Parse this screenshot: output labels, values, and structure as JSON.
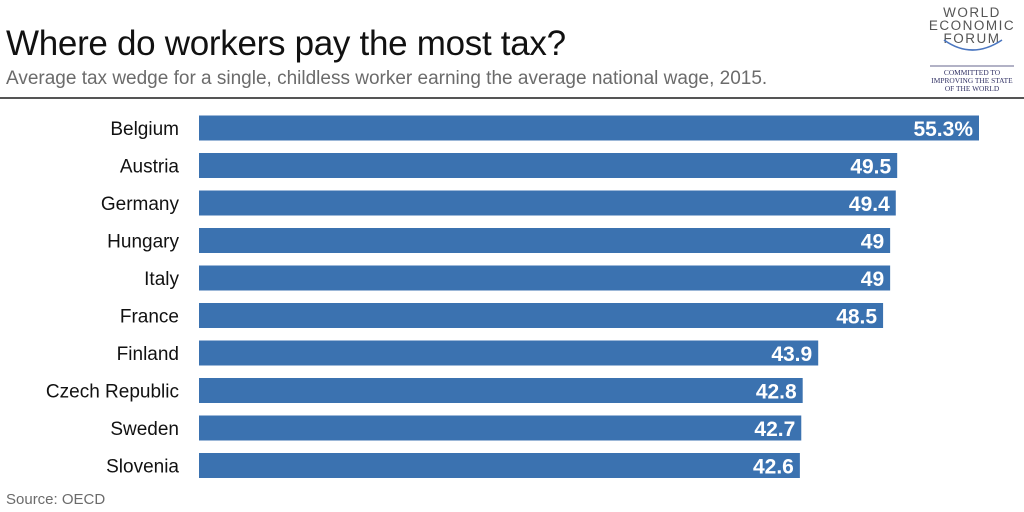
{
  "title": "Where do workers pay the most tax?",
  "subtitle": "Average tax wedge for a single, childless worker earning the average national wage, 2015.",
  "source": "Source: OECD",
  "logo": {
    "lines": [
      "WORLD",
      "ECONOMIC",
      "FORUM"
    ],
    "tagline": [
      "COMMITTED TO",
      "IMPROVING THE STATE",
      "OF THE WORLD"
    ]
  },
  "colors": {
    "bar": "#3b72b0",
    "bar_label": "#ffffff",
    "category_label": "#111111"
  },
  "chart_data": {
    "type": "bar",
    "orientation": "horizontal",
    "title": "Where do workers pay the most tax?",
    "subtitle": "Average tax wedge for a single, childless worker earning the average national wage, 2015.",
    "categories": [
      "Belgium",
      "Austria",
      "Germany",
      "Hungary",
      "Italy",
      "France",
      "Finland",
      "Czech Republic",
      "Sweden",
      "Slovenia"
    ],
    "values": [
      55.3,
      49.5,
      49.4,
      49,
      49,
      48.5,
      43.9,
      42.8,
      42.7,
      42.6
    ],
    "data_labels": [
      "55.3%",
      "49.5",
      "49.4",
      "49",
      "49",
      "48.5",
      "43.9",
      "42.8",
      "42.7",
      "42.6"
    ],
    "xlim": [
      0,
      55.3
    ],
    "grid": false,
    "legend": "none"
  }
}
